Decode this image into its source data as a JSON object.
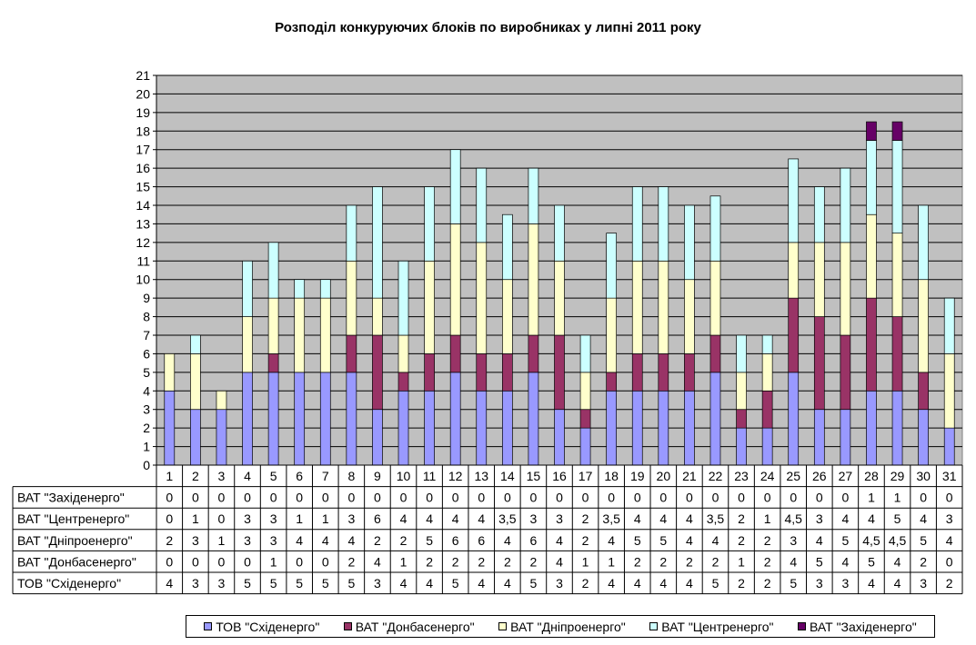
{
  "chart_data": {
    "type": "stacked-bar-with-table",
    "title": "Розподіл конкуруючих блоків по виробниках у липні 2011 року",
    "categories": [
      "1",
      "2",
      "3",
      "4",
      "5",
      "6",
      "7",
      "8",
      "9",
      "10",
      "11",
      "12",
      "13",
      "14",
      "15",
      "16",
      "17",
      "18",
      "19",
      "20",
      "21",
      "22",
      "23",
      "24",
      "25",
      "26",
      "27",
      "28",
      "29",
      "30",
      "31"
    ],
    "ylim": [
      0,
      21
    ],
    "yticks": [
      "0",
      "1",
      "2",
      "3",
      "4",
      "5",
      "6",
      "7",
      "8",
      "9",
      "10",
      "11",
      "12",
      "13",
      "14",
      "15",
      "16",
      "17",
      "18",
      "19",
      "20",
      "21"
    ],
    "grid": true,
    "legend_position": "bottom",
    "series": [
      {
        "name": "ТОВ \"Східенерго\"",
        "color": "#9999ff",
        "values": [
          4,
          3,
          3,
          5,
          5,
          5,
          5,
          5,
          3,
          4,
          4,
          5,
          4,
          4,
          5,
          3,
          2,
          4,
          4,
          4,
          4,
          5,
          2,
          2,
          5,
          3,
          3,
          4,
          4,
          3,
          2
        ],
        "labels": [
          "4",
          "3",
          "3",
          "5",
          "5",
          "5",
          "5",
          "5",
          "3",
          "4",
          "4",
          "5",
          "4",
          "4",
          "5",
          "3",
          "2",
          "4",
          "4",
          "4",
          "4",
          "5",
          "2",
          "2",
          "5",
          "3",
          "3",
          "4",
          "4",
          "3",
          "2"
        ]
      },
      {
        "name": "ВАТ \"Донбасенерго\"",
        "color": "#993366",
        "values": [
          0,
          0,
          0,
          0,
          1,
          0,
          0,
          2,
          4,
          1,
          2,
          2,
          2,
          2,
          2,
          4,
          1,
          1,
          2,
          2,
          2,
          2,
          1,
          2,
          4,
          5,
          4,
          5,
          4,
          2,
          0
        ],
        "labels": [
          "0",
          "0",
          "0",
          "0",
          "1",
          "0",
          "0",
          "2",
          "4",
          "1",
          "2",
          "2",
          "2",
          "2",
          "2",
          "4",
          "1",
          "1",
          "2",
          "2",
          "2",
          "2",
          "1",
          "2",
          "4",
          "5",
          "4",
          "5",
          "4",
          "2",
          "0"
        ]
      },
      {
        "name": "ВАТ \"Дніпроенерго\"",
        "color": "#ffffcc",
        "values": [
          2,
          3,
          1,
          3,
          3,
          4,
          4,
          4,
          2,
          2,
          5,
          6,
          6,
          4,
          6,
          4,
          2,
          4,
          5,
          5,
          4,
          4,
          2,
          2,
          3,
          4,
          5,
          4.5,
          4.5,
          5,
          4
        ],
        "labels": [
          "2",
          "3",
          "1",
          "3",
          "3",
          "4",
          "4",
          "4",
          "2",
          "2",
          "5",
          "6",
          "6",
          "4",
          "6",
          "4",
          "2",
          "4",
          "5",
          "5",
          "4",
          "4",
          "2",
          "2",
          "3",
          "4",
          "5",
          "4,5",
          "4,5",
          "5",
          "4"
        ]
      },
      {
        "name": "ВАТ \"Центренерго\"",
        "color": "#ccffff",
        "values": [
          0,
          1,
          0,
          3,
          3,
          1,
          1,
          3,
          6,
          4,
          4,
          4,
          4,
          3.5,
          3,
          3,
          2,
          3.5,
          4,
          4,
          4,
          3.5,
          2,
          1,
          4.5,
          3,
          4,
          4,
          5,
          4,
          3
        ],
        "labels": [
          "0",
          "1",
          "0",
          "3",
          "3",
          "1",
          "1",
          "3",
          "6",
          "4",
          "4",
          "4",
          "4",
          "3,5",
          "3",
          "3",
          "2",
          "3,5",
          "4",
          "4",
          "4",
          "3,5",
          "2",
          "1",
          "4,5",
          "3",
          "4",
          "4",
          "5",
          "4",
          "3"
        ]
      },
      {
        "name": "ВАТ \"Західенерго\"",
        "color": "#660066",
        "values": [
          0,
          0,
          0,
          0,
          0,
          0,
          0,
          0,
          0,
          0,
          0,
          0,
          0,
          0,
          0,
          0,
          0,
          0,
          0,
          0,
          0,
          0,
          0,
          0,
          0,
          0,
          0,
          1,
          1,
          0,
          0
        ],
        "labels": [
          "0",
          "0",
          "0",
          "0",
          "0",
          "0",
          "0",
          "0",
          "0",
          "0",
          "0",
          "0",
          "0",
          "0",
          "0",
          "0",
          "0",
          "0",
          "0",
          "0",
          "0",
          "0",
          "0",
          "0",
          "0",
          "0",
          "0",
          "1",
          "1",
          "0",
          "0"
        ]
      }
    ],
    "table_row_order": [
      4,
      3,
      2,
      1,
      0
    ]
  }
}
